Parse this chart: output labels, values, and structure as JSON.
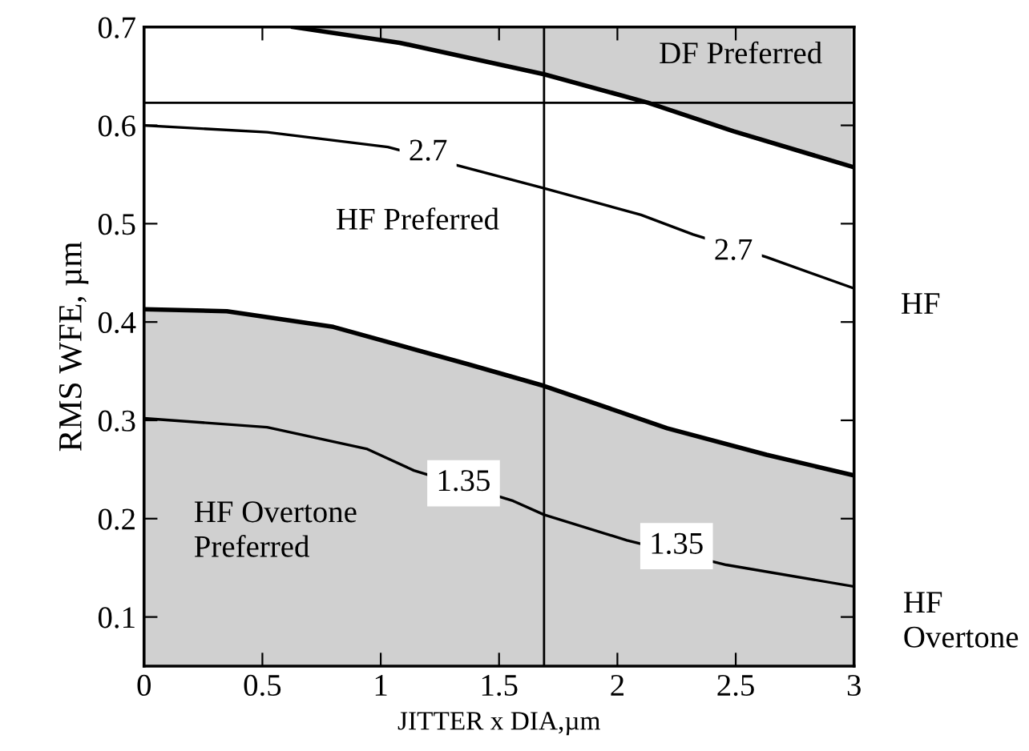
{
  "chart_data": {
    "type": "line",
    "xlabel": "JITTER x DIA,µm",
    "ylabel": "RMS WFE, µm",
    "xlim": [
      0,
      3
    ],
    "ylim": [
      0.05,
      0.7
    ],
    "xticks": [
      0,
      0.5,
      1,
      1.5,
      2,
      2.5,
      3
    ],
    "yticks": [
      0.1,
      0.2,
      0.3,
      0.4,
      0.5,
      0.6,
      0.7
    ],
    "grid": false,
    "legend": "right",
    "marker": "none",
    "line_style": "solid",
    "series": [
      {
        "color": "#000000",
        "x": [
          0.63,
          1.08,
          1.69,
          2.13,
          2.49,
          2.99
        ],
        "values": [
          0.7,
          0.684,
          0.652,
          0.623,
          0.594,
          0.558
        ],
        "lower": [
          0.7,
          0.684,
          0.652,
          0.623,
          0.594,
          0.558
        ],
        "upper": [
          0.7,
          0.7,
          0.7,
          0.7,
          0.7,
          0.7
        ]
      },
      {
        "type": "area",
        "color": "#d0d0d0",
        "x": [
          0,
          0.35,
          0.8,
          1.37,
          1.69,
          2.21,
          2.63,
          3
        ],
        "values": [
          0.413,
          0.411,
          0.395,
          0.357,
          0.335,
          0.292,
          0.265,
          0.244
        ]
      },
      {
        "name": "HF",
        "color": "#000000",
        "x": [
          0,
          0.52,
          1.03,
          1.69,
          2.1,
          2.32,
          2.63,
          2.99
        ],
        "values": [
          0.6,
          0.593,
          0.578,
          0.536,
          0.509,
          0.489,
          0.466,
          0.435
        ]
      },
      {
        "name": "HF Overtone",
        "color": "#000000",
        "x": [
          0,
          0.52,
          0.94,
          1.14,
          1.56,
          1.69,
          2.04,
          2.46,
          3
        ],
        "values": [
          0.302,
          0.293,
          0.271,
          0.249,
          0.218,
          0.204,
          0.178,
          0.153,
          0.131
        ]
      }
    ],
    "ref_lines": [
      {
        "axis": "y",
        "value": 0.623,
        "color": "#000000"
      },
      {
        "axis": "x",
        "value": 1.69,
        "color": "#000000"
      }
    ],
    "annotations": [
      "DF Preferred",
      "HF Preferred",
      "HF Overtone\nPreferred",
      {
        "text": "2.7",
        "x": 1.2,
        "y": 0.572
      },
      {
        "text": "2.7",
        "x": 2.49,
        "y": 0.471
      },
      {
        "text": "1.35",
        "x": 1.35,
        "y": 0.236
      },
      {
        "text": "1.35",
        "x": 2.25,
        "y": 0.172
      }
    ]
  }
}
